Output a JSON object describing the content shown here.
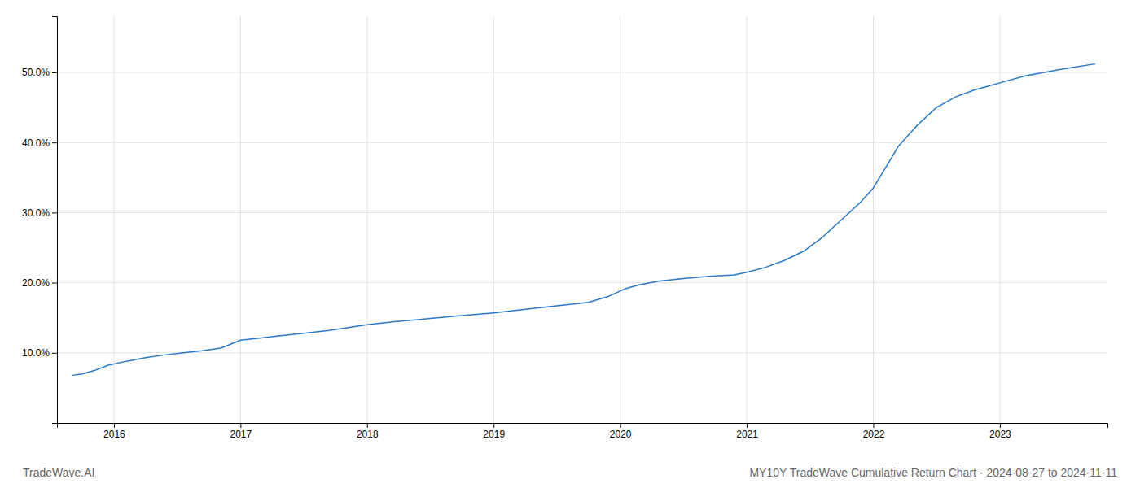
{
  "chart_data": {
    "type": "line",
    "title": "MY10Y TradeWave Cumulative Return Chart - 2024-08-27 to 2024-11-11",
    "annotations": [
      "TradeWave.AI"
    ],
    "color": "#2878c8",
    "grid": true,
    "x": [
      2015.67,
      2015.75,
      2015.85,
      2015.95,
      2016.1,
      2016.25,
      2016.4,
      2016.55,
      2016.7,
      2016.85,
      2017.0,
      2017.15,
      2017.3,
      2017.5,
      2017.7,
      2017.85,
      2018.0,
      2018.2,
      2018.5,
      2018.75,
      2019.0,
      2019.25,
      2019.5,
      2019.75,
      2019.9,
      2020.0,
      2020.05,
      2020.15,
      2020.3,
      2020.5,
      2020.7,
      2020.9,
      2021.0,
      2021.15,
      2021.3,
      2021.45,
      2021.6,
      2021.75,
      2021.9,
      2022.0,
      2022.1,
      2022.2,
      2022.35,
      2022.5,
      2022.65,
      2022.8,
      2022.9,
      2023.0,
      2023.2,
      2023.5,
      2023.75
    ],
    "values": [
      6.8,
      7.0,
      7.5,
      8.2,
      8.8,
      9.3,
      9.7,
      10.0,
      10.3,
      10.7,
      11.8,
      12.1,
      12.4,
      12.8,
      13.2,
      13.6,
      14.0,
      14.4,
      14.9,
      15.3,
      15.7,
      16.2,
      16.7,
      17.2,
      18.0,
      18.8,
      19.2,
      19.7,
      20.2,
      20.6,
      20.9,
      21.1,
      21.5,
      22.2,
      23.2,
      24.5,
      26.5,
      29.0,
      31.5,
      33.5,
      36.5,
      39.5,
      42.5,
      45.0,
      46.5,
      47.5,
      48.0,
      48.5,
      49.5,
      50.5,
      51.2
    ],
    "xlim": [
      2015.55,
      2023.85
    ],
    "xticks": [
      2016,
      2017,
      2018,
      2019,
      2020,
      2021,
      2022,
      2023
    ],
    "ylim": [
      0,
      58
    ],
    "yticks": [
      {
        "value": 10.0,
        "label": "10.0%"
      },
      {
        "value": 20.0,
        "label": "20.0%"
      },
      {
        "value": 30.0,
        "label": "30.0%"
      },
      {
        "value": 40.0,
        "label": "40.0%"
      },
      {
        "value": 50.0,
        "label": "50.0%"
      }
    ]
  }
}
